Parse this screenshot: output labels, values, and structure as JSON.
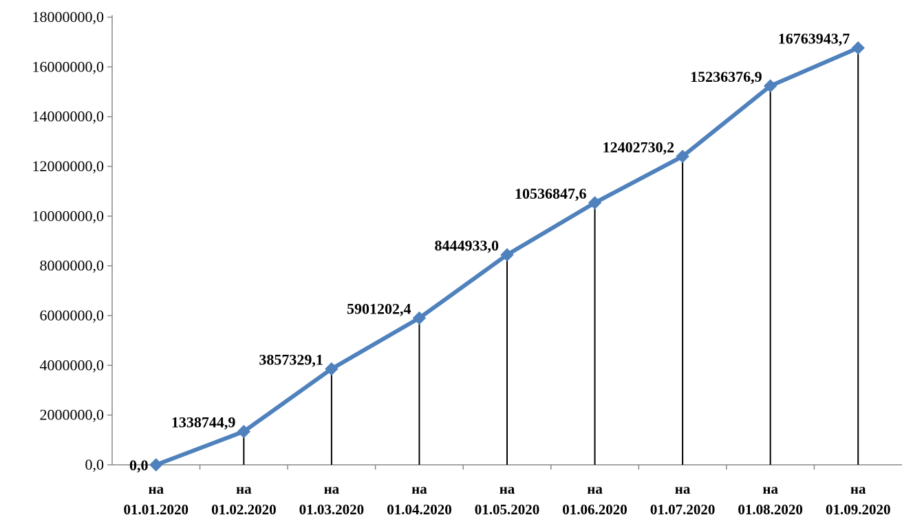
{
  "chart_data": {
    "type": "line",
    "title": "",
    "xlabel": "",
    "ylabel": "",
    "ylim": [
      0,
      18000000
    ],
    "yticks": [
      "0,0",
      "2000000,0",
      "4000000,0",
      "6000000,0",
      "8000000,0",
      "10000000,0",
      "12000000,0",
      "14000000,0",
      "16000000,0",
      "18000000,0"
    ],
    "ytick_values": [
      0,
      2000000,
      4000000,
      6000000,
      8000000,
      10000000,
      12000000,
      14000000,
      16000000,
      18000000
    ],
    "categories": [
      [
        "на",
        "01.01.2020"
      ],
      [
        "на",
        "01.02.2020"
      ],
      [
        "на",
        "01.03.2020"
      ],
      [
        "на",
        "01.04.2020"
      ],
      [
        "на",
        "01.05.2020"
      ],
      [
        "на",
        "01.06.2020"
      ],
      [
        "на",
        "01.07.2020"
      ],
      [
        "на",
        "01.08.2020"
      ],
      [
        "на",
        "01.09.2020"
      ]
    ],
    "values": [
      0.0,
      1338744.9,
      3857329.1,
      5901202.4,
      8444933.0,
      10536847.6,
      12402730.2,
      15236376.9,
      16763943.7
    ],
    "data_labels": [
      "0,0",
      "1338744,9",
      "3857329,1",
      "5901202,4",
      "8444933,0",
      "10536847,6",
      "12402730,2",
      "15236376,9",
      "16763943,7"
    ],
    "grid": false,
    "drop_lines": true,
    "legend": "none",
    "colors": {
      "line": "#4F81BD",
      "marker": "#4F81BD",
      "drop_line": "#000000",
      "axis": "#888888",
      "text": "#000000"
    }
  }
}
